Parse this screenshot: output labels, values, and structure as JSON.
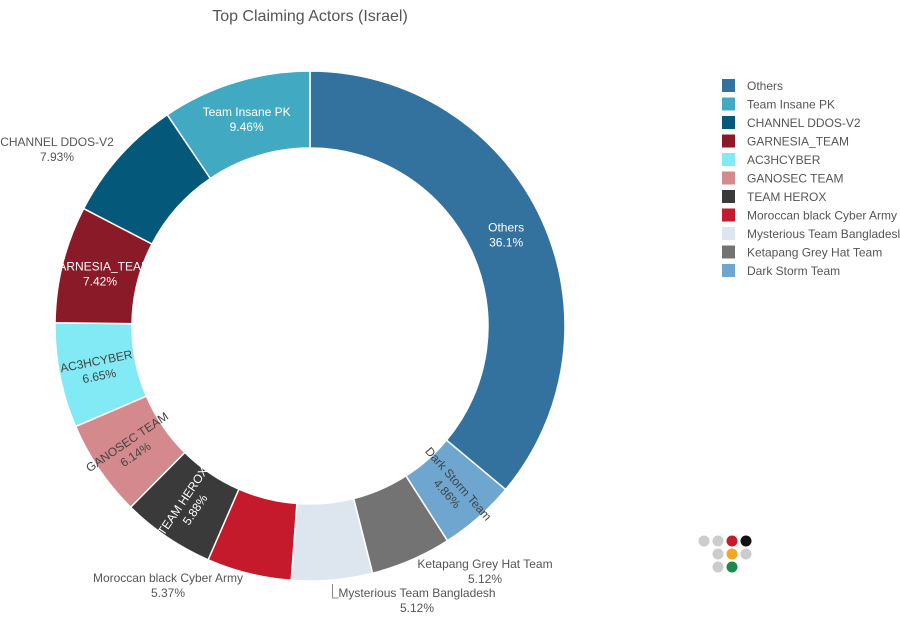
{
  "chart_data": {
    "type": "pie",
    "title": "Top Claiming Actors (Israel)",
    "donut": true,
    "legend_position": "right",
    "slices": [
      {
        "name": "Others",
        "value": 36.1,
        "label": "36.1%",
        "color": "#33719e"
      },
      {
        "name": "Dark Storm Team",
        "value": 4.86,
        "label": "4.86%",
        "color": "#6ea6cf"
      },
      {
        "name": "Ketapang Grey Hat Team",
        "value": 5.12,
        "label": "5.12%",
        "color": "#737373"
      },
      {
        "name": "Mysterious Team Bangladesh",
        "value": 5.12,
        "label": "5.12%",
        "color": "#dde6ee"
      },
      {
        "name": "Moroccan black Cyber Army",
        "value": 5.37,
        "label": "5.37%",
        "color": "#c41a2c"
      },
      {
        "name": "TEAM HEROX",
        "value": 5.88,
        "label": "5.88%",
        "color": "#3a3a3a"
      },
      {
        "name": "GANOSEC TEAM",
        "value": 6.14,
        "label": "6.14%",
        "color": "#d4898c"
      },
      {
        "name": "AC3HCYBER",
        "value": 6.65,
        "label": "6.65%",
        "color": "#82eaf4"
      },
      {
        "name": "GARNESIA_TEAM",
        "value": 7.42,
        "label": "7.42%",
        "color": "#8b1a28"
      },
      {
        "name": "CHANNEL DDOS-V2",
        "value": 7.93,
        "label": "7.93%",
        "color": "#04587a"
      },
      {
        "name": "Team Insane PK",
        "value": 9.46,
        "label": "9.46%",
        "color": "#41a9c2"
      }
    ],
    "legend_order": [
      "Others",
      "Team Insane PK",
      "CHANNEL DDOS-V2",
      "GARNESIA_TEAM",
      "AC3HCYBER",
      "GANOSEC TEAM",
      "TEAM HEROX",
      "Moroccan black Cyber Army",
      "Mysterious Team Bangladesh",
      "Ketapang Grey Hat Team",
      "Dark Storm Team"
    ],
    "legend_display": [
      "Others",
      "Team Insane PK",
      "CHANNEL DDOS-V2",
      "GARNESIA_TEAM",
      "AC3HCYBER",
      "GANOSEC TEAM",
      "TEAM HEROX",
      "Moroccan black Cyber Army",
      "Mysterious Team Bangladesl",
      "Ketapang Grey Hat Team",
      "Dark Storm Team"
    ]
  },
  "logo": {
    "dot_colors": [
      "#cccccc",
      "#cccccc",
      "#c41a2c",
      "#111111",
      "#cccccc",
      "#f5a623",
      "#cccccc",
      "#cccccc",
      "#1b8a4a"
    ]
  }
}
